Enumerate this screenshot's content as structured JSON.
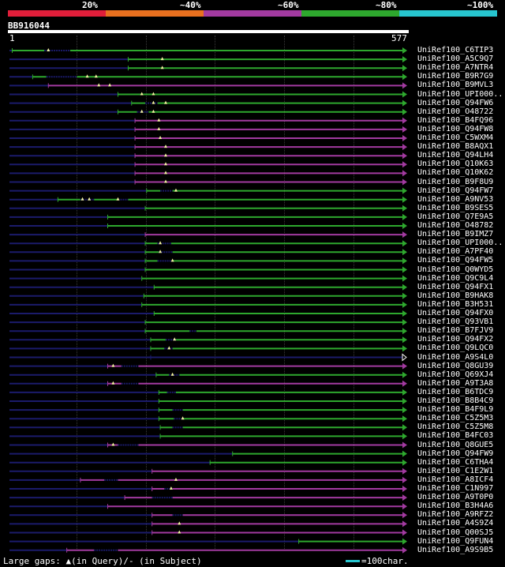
{
  "legend": {
    "segments": [
      {
        "label": "20%",
        "color": "#e01e3a"
      },
      {
        "label": "~40%",
        "color": "#e8701f"
      },
      {
        "label": "~60%",
        "color": "#a23aa0"
      },
      {
        "label": "~80%",
        "color": "#2ea82e"
      },
      {
        "label": "~100%",
        "color": "#27c5cf"
      }
    ]
  },
  "query": {
    "id": "BB916044",
    "start": "1",
    "end": "577",
    "length": 577
  },
  "colors": {
    "green": "#2ea82e",
    "purple": "#a23aa0",
    "dark": "#1b1b6b",
    "marker": "#f2f2a0"
  },
  "hits": [
    {
      "name": "UniRef100_C6TIP3",
      "s": 5,
      "e": 577,
      "c": "green",
      "gaps": [
        [
          5,
          52
        ],
        [
          90,
          577
        ]
      ],
      "m": [
        58
      ],
      "t": "arrow"
    },
    {
      "name": "UniRef100_A5C9Q7",
      "s": 175,
      "e": 577,
      "c": "green",
      "m": [
        225
      ],
      "t": "arrow"
    },
    {
      "name": "UniRef100_A7NTR4",
      "s": 175,
      "e": 577,
      "c": "green",
      "m": [
        225
      ],
      "t": "arrow"
    },
    {
      "name": "UniRef100_B9R7G9",
      "s": 35,
      "e": 577,
      "c": "green",
      "gaps": [
        [
          35,
          55
        ],
        [
          100,
          577
        ]
      ],
      "m": [
        115,
        128
      ],
      "t": "arrow"
    },
    {
      "name": "UniRef100_B9MVL3",
      "s": 58,
      "e": 577,
      "c": "purple",
      "m": [
        132,
        148
      ],
      "t": "arrow"
    },
    {
      "name": "UniRef100_UPI000..",
      "s": 160,
      "e": 577,
      "c": "green",
      "m": [
        195,
        212
      ],
      "t": "arrow"
    },
    {
      "name": "UniRef100_Q94FW6",
      "s": 180,
      "e": 577,
      "c": "green",
      "gaps": [
        [
          180,
          200
        ],
        [
          218,
          577
        ]
      ],
      "m": [
        212,
        230
      ],
      "t": "arrow"
    },
    {
      "name": "UniRef100_O48722",
      "s": 160,
      "e": 577,
      "c": "green",
      "gaps": [
        [
          160,
          188
        ],
        [
          205,
          577
        ]
      ],
      "m": [
        195,
        212
      ],
      "t": "arrow"
    },
    {
      "name": "UniRef100_B4FQ96",
      "s": 185,
      "e": 577,
      "c": "purple",
      "m": [
        220
      ],
      "t": "arrow"
    },
    {
      "name": "UniRef100_Q94FW8",
      "s": 185,
      "e": 577,
      "c": "purple",
      "m": [
        220
      ],
      "t": "arrow"
    },
    {
      "name": "UniRef100_C5WXM4",
      "s": 185,
      "e": 577,
      "c": "purple",
      "m": [
        222
      ],
      "t": "arrow"
    },
    {
      "name": "UniRef100_B8AQX1",
      "s": 185,
      "e": 577,
      "c": "purple",
      "m": [
        230
      ],
      "t": "arrow"
    },
    {
      "name": "UniRef100_Q94LH4",
      "s": 185,
      "e": 577,
      "c": "purple",
      "m": [
        230
      ],
      "t": "arrow"
    },
    {
      "name": "UniRef100_Q10K63",
      "s": 185,
      "e": 577,
      "c": "purple",
      "m": [
        230
      ],
      "t": "arrow"
    },
    {
      "name": "UniRef100_Q10K62",
      "s": 185,
      "e": 577,
      "c": "purple",
      "m": [
        230
      ],
      "t": "arrow"
    },
    {
      "name": "UniRef100_B9F8U9",
      "s": 185,
      "e": 577,
      "c": "purple",
      "m": [
        230
      ],
      "t": "arrow"
    },
    {
      "name": "UniRef100_Q94FW7",
      "s": 202,
      "e": 577,
      "c": "green",
      "gaps": [
        [
          202,
          222
        ],
        [
          240,
          577
        ]
      ],
      "m": [
        245
      ],
      "t": "arrow"
    },
    {
      "name": "UniRef100_A9NV53",
      "s": 72,
      "e": 577,
      "c": "green",
      "gaps": [
        [
          72,
          105
        ],
        [
          125,
          160
        ],
        [
          175,
          577
        ]
      ],
      "m": [
        108,
        118,
        160
      ],
      "t": "arrow"
    },
    {
      "name": "UniRef100_B9SES5",
      "s": 200,
      "e": 577,
      "c": "green",
      "t": "arrow"
    },
    {
      "name": "UniRef100_Q7E9A5",
      "s": 145,
      "e": 577,
      "c": "green",
      "t": "arrow"
    },
    {
      "name": "UniRef100_O48782",
      "s": 145,
      "e": 577,
      "c": "green",
      "t": "arrow"
    },
    {
      "name": "UniRef100_B9IMZ7",
      "s": 200,
      "e": 577,
      "c": "purple",
      "t": "arrow"
    },
    {
      "name": "UniRef100_UPI000..",
      "s": 200,
      "e": 577,
      "c": "green",
      "gaps": [
        [
          200,
          218
        ],
        [
          238,
          577
        ]
      ],
      "m": [
        222
      ],
      "t": "arrow"
    },
    {
      "name": "UniRef100_A7PF40",
      "s": 200,
      "e": 577,
      "c": "green",
      "gaps": [
        [
          200,
          220
        ],
        [
          240,
          577
        ]
      ],
      "m": [
        222
      ],
      "t": "arrow"
    },
    {
      "name": "UniRef100_Q94FW5",
      "s": 200,
      "e": 577,
      "c": "green",
      "gaps": [
        [
          200,
          218
        ],
        [
          240,
          577
        ]
      ],
      "m": [
        240
      ],
      "t": "arrow"
    },
    {
      "name": "UniRef100_Q0WYD5",
      "s": 200,
      "e": 577,
      "c": "green",
      "t": "arrow"
    },
    {
      "name": "UniRef100_Q9C9L4",
      "s": 195,
      "e": 577,
      "c": "green",
      "t": "arrow"
    },
    {
      "name": "UniRef100_Q94FX1",
      "s": 213,
      "e": 577,
      "c": "green",
      "t": "arrow"
    },
    {
      "name": "UniRef100_B9HAK8",
      "s": 198,
      "e": 577,
      "c": "green",
      "t": "arrow"
    },
    {
      "name": "UniRef100_B3H531",
      "s": 195,
      "e": 577,
      "c": "green",
      "t": "arrow"
    },
    {
      "name": "UniRef100_Q94FX0",
      "s": 213,
      "e": 577,
      "c": "green",
      "t": "arrow"
    },
    {
      "name": "UniRef100_Q93VB1",
      "s": 200,
      "e": 577,
      "c": "green",
      "t": "arrow"
    },
    {
      "name": "UniRef100_B7FJV9",
      "s": 200,
      "e": 577,
      "c": "green",
      "gaps": [
        [
          200,
          265
        ],
        [
          275,
          577
        ]
      ],
      "t": "arrow"
    },
    {
      "name": "UniRef100_Q94FX2",
      "s": 208,
      "e": 577,
      "c": "green",
      "gaps": [
        [
          208,
          230
        ],
        [
          245,
          577
        ]
      ],
      "m": [
        243
      ],
      "t": "arrow"
    },
    {
      "name": "UniRef100_Q9LQC0",
      "s": 208,
      "e": 577,
      "c": "green",
      "gaps": [
        [
          208,
          228
        ],
        [
          240,
          577
        ]
      ],
      "m": [
        235
      ],
      "t": "arrow"
    },
    {
      "name": "UniRef100_A9S4L0",
      "s": 208,
      "e": 577,
      "c": "dark",
      "t": "open"
    },
    {
      "name": "UniRef100_Q8GU39",
      "s": 145,
      "e": 577,
      "c": "purple",
      "gaps": [
        [
          145,
          165
        ],
        [
          190,
          577
        ]
      ],
      "m": [
        153
      ],
      "t": "arrow"
    },
    {
      "name": "UniRef100_Q69XJ4",
      "s": 216,
      "e": 577,
      "c": "green",
      "gaps": [
        [
          216,
          235
        ],
        [
          250,
          577
        ]
      ],
      "m": [
        240
      ],
      "t": "arrow"
    },
    {
      "name": "UniRef100_A9T3A8",
      "s": 145,
      "e": 577,
      "c": "purple",
      "gaps": [
        [
          145,
          165
        ],
        [
          190,
          577
        ]
      ],
      "m": [
        153
      ],
      "t": "arrow"
    },
    {
      "name": "UniRef100_B6TDC9",
      "s": 220,
      "e": 577,
      "c": "green",
      "gaps": [
        [
          220,
          232
        ],
        [
          245,
          577
        ]
      ],
      "t": "arrow"
    },
    {
      "name": "UniRef100_B8B4C9",
      "s": 220,
      "e": 577,
      "c": "green",
      "t": "arrow"
    },
    {
      "name": "UniRef100_B4F9L9",
      "s": 220,
      "e": 577,
      "c": "green",
      "gaps": [
        [
          220,
          240
        ],
        [
          255,
          577
        ]
      ],
      "t": "arrow"
    },
    {
      "name": "UniRef100_C5Z5M3",
      "s": 220,
      "e": 577,
      "c": "green",
      "gaps": [
        [
          220,
          242
        ],
        [
          255,
          577
        ]
      ],
      "m": [
        255
      ],
      "t": "arrow"
    },
    {
      "name": "UniRef100_C5Z5M8",
      "s": 222,
      "e": 577,
      "c": "green",
      "gaps": [
        [
          222,
          240
        ],
        [
          255,
          577
        ]
      ],
      "t": "arrow"
    },
    {
      "name": "UniRef100_B4FC03",
      "s": 222,
      "e": 577,
      "c": "green",
      "t": "arrow"
    },
    {
      "name": "UniRef100_Q8GUE5",
      "s": 145,
      "e": 577,
      "c": "purple",
      "gaps": [
        [
          145,
          160
        ],
        [
          190,
          577
        ]
      ],
      "m": [
        153
      ],
      "t": "arrow"
    },
    {
      "name": "UniRef100_Q94FW9",
      "s": 328,
      "e": 577,
      "c": "green",
      "t": "arrow"
    },
    {
      "name": "UniRef100_C6THA4",
      "s": 295,
      "e": 577,
      "c": "green",
      "t": "arrow"
    },
    {
      "name": "UniRef100_C1E2W1",
      "s": 210,
      "e": 577,
      "c": "purple",
      "t": "arrow"
    },
    {
      "name": "UniRef100_A8ICF4",
      "s": 105,
      "e": 577,
      "c": "purple",
      "gaps": [
        [
          105,
          140
        ],
        [
          160,
          577
        ]
      ],
      "m": [
        245
      ],
      "t": "arrow"
    },
    {
      "name": "UniRef100_C1N997",
      "s": 210,
      "e": 577,
      "c": "purple",
      "gaps": [
        [
          210,
          228
        ],
        [
          240,
          577
        ]
      ],
      "m": [
        238
      ],
      "t": "arrow"
    },
    {
      "name": "UniRef100_A9T0P0",
      "s": 170,
      "e": 577,
      "c": "purple",
      "gaps": [
        [
          170,
          210
        ],
        [
          240,
          577
        ]
      ],
      "t": "arrow"
    },
    {
      "name": "UniRef100_B3H4A6",
      "s": 145,
      "e": 577,
      "c": "purple",
      "t": "arrow"
    },
    {
      "name": "UniRef100_A9RFZ2",
      "s": 210,
      "e": 577,
      "c": "purple",
      "gaps": [
        [
          210,
          240
        ],
        [
          255,
          577
        ]
      ],
      "t": "arrow"
    },
    {
      "name": "UniRef100_A4S9Z4",
      "s": 210,
      "e": 577,
      "c": "purple",
      "m": [
        250
      ],
      "t": "arrow"
    },
    {
      "name": "UniRef100_Q00SJ5",
      "s": 210,
      "e": 577,
      "c": "purple",
      "m": [
        250
      ],
      "t": "arrow"
    },
    {
      "name": "UniRef100_Q9FUN4",
      "s": 425,
      "e": 577,
      "c": "green",
      "t": "arrow"
    },
    {
      "name": "UniRef100_A9S9B5",
      "s": 85,
      "e": 577,
      "c": "purple",
      "gaps": [
        [
          85,
          125
        ],
        [
          160,
          577
        ]
      ],
      "t": "arrow"
    }
  ],
  "footer": {
    "gaps_note": "Large gaps: ▲(in Query)/- (in Subject)",
    "scale_note": "=100char."
  }
}
